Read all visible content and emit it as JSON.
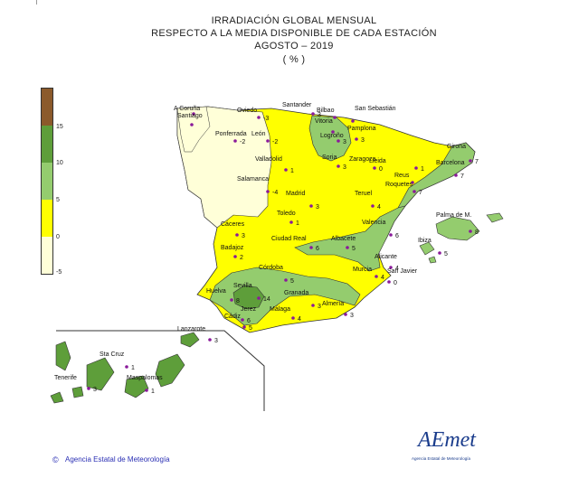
{
  "title": {
    "line1": "IRRADIACIÓN GLOBAL MENSUAL",
    "line2": "RESPECTO A LA MEDIA DISPONIBLE DE CADA ESTACIÓN",
    "line3": "AGOSTO  – 2019",
    "line4": "( % )"
  },
  "legend": {
    "ticks": [
      "15",
      "10",
      "5",
      "0",
      "-5"
    ],
    "colors": [
      "#8b5a2b",
      "#5e9e3a",
      "#94cc6e",
      "#ffff00",
      "#ffffd8"
    ]
  },
  "colors": {
    "band_neg": "#ffffd8",
    "band_0_5": "#ffff00",
    "band_5_10": "#94cc6e",
    "band_10_15": "#5e9e3a",
    "station_dot": "#8a1a9a",
    "outline": "#333333"
  },
  "stations": [
    {
      "name": "A Coruña",
      "value": ""
    },
    {
      "name": "Santiago",
      "value": ""
    },
    {
      "name": "Oviedo",
      "value": "-3"
    },
    {
      "name": "Santander",
      "value": "3"
    },
    {
      "name": "Bilbao",
      "value": ""
    },
    {
      "name": "San Sebastián",
      "value": ""
    },
    {
      "name": "Vitoria",
      "value": ""
    },
    {
      "name": "Pamplona",
      "value": "3"
    },
    {
      "name": "Logroño",
      "value": "3"
    },
    {
      "name": "Ponferrada",
      "value": "-2"
    },
    {
      "name": "León",
      "value": "-2"
    },
    {
      "name": "Valladolid",
      "value": "1"
    },
    {
      "name": "Soria",
      "value": "3"
    },
    {
      "name": "Zaragoza",
      "value": "0"
    },
    {
      "name": "Lleida",
      "value": "1"
    },
    {
      "name": "Girona",
      "value": "7"
    },
    {
      "name": "Barcelona",
      "value": "7"
    },
    {
      "name": "Reus",
      "value": ""
    },
    {
      "name": "Roquetes",
      "value": "7"
    },
    {
      "name": "Salamanca",
      "value": "-4"
    },
    {
      "name": "Madrid",
      "value": "3"
    },
    {
      "name": "Teruel",
      "value": "4"
    },
    {
      "name": "Toledo",
      "value": "1"
    },
    {
      "name": "Palma de M.",
      "value": "8"
    },
    {
      "name": "Ibiza",
      "value": "5"
    },
    {
      "name": "Cáceres",
      "value": "3"
    },
    {
      "name": "Valencia",
      "value": "6"
    },
    {
      "name": "Ciudad Real",
      "value": "6"
    },
    {
      "name": "Albacete",
      "value": "5"
    },
    {
      "name": "Badajoz",
      "value": "2"
    },
    {
      "name": "Alicante",
      "value": "4"
    },
    {
      "name": "Murcia",
      "value": "4"
    },
    {
      "name": "San Javier",
      "value": "0"
    },
    {
      "name": "Córdoba",
      "value": "5"
    },
    {
      "name": "Huelva",
      "value": "8"
    },
    {
      "name": "Sevilla",
      "value": "14"
    },
    {
      "name": "Granada",
      "value": "3"
    },
    {
      "name": "Almería",
      "value": "3"
    },
    {
      "name": "Jerez",
      "value": "6"
    },
    {
      "name": "Málaga",
      "value": "4"
    },
    {
      "name": "Cádiz",
      "value": "5"
    },
    {
      "name": "Lanzarote",
      "value": "3"
    },
    {
      "name": "Sta Cruz",
      "value": "1"
    },
    {
      "name": "Tenerife",
      "value": "3"
    },
    {
      "name": "Maspalomas",
      "value": "1"
    }
  ],
  "credit": "Agencia Estatal de Meteorología",
  "logo": {
    "text": "AEmet",
    "subtitle": "Agencia Estatal de Meteorología"
  }
}
